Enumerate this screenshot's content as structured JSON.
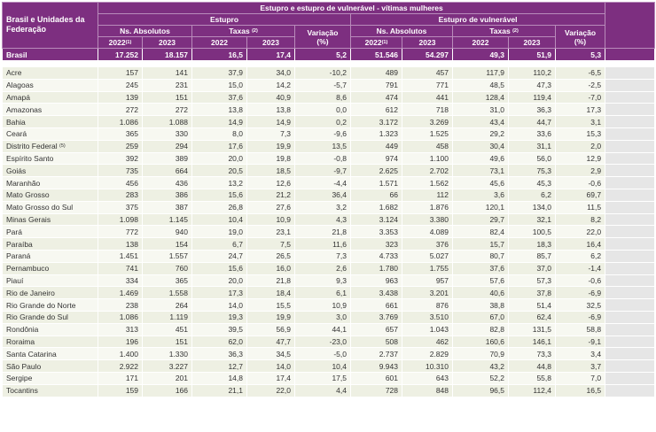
{
  "header": {
    "title": "Estupro e estupro de vulnerável - vítimas mulheres",
    "region": "Brasil e Unidades da Federação",
    "groups": [
      "Estupro",
      "Estupro de vulnerável"
    ],
    "absolute": "Ns. Absolutos",
    "rates": "Taxas",
    "rates_note": "(2)",
    "variation": "Variação",
    "variation_unit": "(%)",
    "years": [
      "2022",
      "2023"
    ],
    "first_year_note": "(1)"
  },
  "national": {
    "name": "Brasil",
    "cells": [
      "17.252",
      "18.157",
      "16,5",
      "17,4",
      "5,2",
      "51.546",
      "54.297",
      "49,3",
      "51,9",
      "5,3"
    ]
  },
  "rows": [
    {
      "name": "Acre",
      "cells": [
        "157",
        "141",
        "37,9",
        "34,0",
        "-10,2",
        "489",
        "457",
        "117,9",
        "110,2",
        "-6,5"
      ]
    },
    {
      "name": "Alagoas",
      "cells": [
        "245",
        "231",
        "15,0",
        "14,2",
        "-5,7",
        "791",
        "771",
        "48,5",
        "47,3",
        "-2,5"
      ]
    },
    {
      "name": "Amapá",
      "cells": [
        "139",
        "151",
        "37,6",
        "40,9",
        "8,6",
        "474",
        "441",
        "128,4",
        "119,4",
        "-7,0"
      ]
    },
    {
      "name": "Amazonas",
      "cells": [
        "272",
        "272",
        "13,8",
        "13,8",
        "0,0",
        "612",
        "718",
        "31,0",
        "36,3",
        "17,3"
      ]
    },
    {
      "name": "Bahia",
      "cells": [
        "1.086",
        "1.088",
        "14,9",
        "14,9",
        "0,2",
        "3.172",
        "3.269",
        "43,4",
        "44,7",
        "3,1"
      ]
    },
    {
      "name": "Ceará",
      "cells": [
        "365",
        "330",
        "8,0",
        "7,3",
        "-9,6",
        "1.323",
        "1.525",
        "29,2",
        "33,6",
        "15,3"
      ]
    },
    {
      "name": "Distrito Federal",
      "note": "(5)",
      "cells": [
        "259",
        "294",
        "17,6",
        "19,9",
        "13,5",
        "449",
        "458",
        "30,4",
        "31,1",
        "2,0"
      ]
    },
    {
      "name": "Espírito Santo",
      "cells": [
        "392",
        "389",
        "20,0",
        "19,8",
        "-0,8",
        "974",
        "1.100",
        "49,6",
        "56,0",
        "12,9"
      ]
    },
    {
      "name": "Goiás",
      "cells": [
        "735",
        "664",
        "20,5",
        "18,5",
        "-9,7",
        "2.625",
        "2.702",
        "73,1",
        "75,3",
        "2,9"
      ]
    },
    {
      "name": "Maranhão",
      "cells": [
        "456",
        "436",
        "13,2",
        "12,6",
        "-4,4",
        "1.571",
        "1.562",
        "45,6",
        "45,3",
        "-0,6"
      ]
    },
    {
      "name": "Mato Grosso",
      "cells": [
        "283",
        "386",
        "15,6",
        "21,2",
        "36,4",
        "66",
        "112",
        "3,6",
        "6,2",
        "69,7"
      ]
    },
    {
      "name": "Mato Grosso do Sul",
      "cells": [
        "375",
        "387",
        "26,8",
        "27,6",
        "3,2",
        "1.682",
        "1.876",
        "120,1",
        "134,0",
        "11,5"
      ]
    },
    {
      "name": "Minas Gerais",
      "cells": [
        "1.098",
        "1.145",
        "10,4",
        "10,9",
        "4,3",
        "3.124",
        "3.380",
        "29,7",
        "32,1",
        "8,2"
      ]
    },
    {
      "name": "Pará",
      "cells": [
        "772",
        "940",
        "19,0",
        "23,1",
        "21,8",
        "3.353",
        "4.089",
        "82,4",
        "100,5",
        "22,0"
      ]
    },
    {
      "name": "Paraíba",
      "cells": [
        "138",
        "154",
        "6,7",
        "7,5",
        "11,6",
        "323",
        "376",
        "15,7",
        "18,3",
        "16,4"
      ]
    },
    {
      "name": "Paraná",
      "cells": [
        "1.451",
        "1.557",
        "24,7",
        "26,5",
        "7,3",
        "4.733",
        "5.027",
        "80,7",
        "85,7",
        "6,2"
      ]
    },
    {
      "name": "Pernambuco",
      "cells": [
        "741",
        "760",
        "15,6",
        "16,0",
        "2,6",
        "1.780",
        "1.755",
        "37,6",
        "37,0",
        "-1,4"
      ]
    },
    {
      "name": "Piauí",
      "cells": [
        "334",
        "365",
        "20,0",
        "21,8",
        "9,3",
        "963",
        "957",
        "57,6",
        "57,3",
        "-0,6"
      ]
    },
    {
      "name": "Rio de Janeiro",
      "cells": [
        "1.469",
        "1.558",
        "17,3",
        "18,4",
        "6,1",
        "3.438",
        "3.201",
        "40,6",
        "37,8",
        "-6,9"
      ]
    },
    {
      "name": "Rio Grande do Norte",
      "cells": [
        "238",
        "264",
        "14,0",
        "15,5",
        "10,9",
        "661",
        "876",
        "38,8",
        "51,4",
        "32,5"
      ]
    },
    {
      "name": "Rio Grande do Sul",
      "cells": [
        "1.086",
        "1.119",
        "19,3",
        "19,9",
        "3,0",
        "3.769",
        "3.510",
        "67,0",
        "62,4",
        "-6,9"
      ]
    },
    {
      "name": "Rondônia",
      "cells": [
        "313",
        "451",
        "39,5",
        "56,9",
        "44,1",
        "657",
        "1.043",
        "82,8",
        "131,5",
        "58,8"
      ]
    },
    {
      "name": "Roraima",
      "cells": [
        "196",
        "151",
        "62,0",
        "47,7",
        "-23,0",
        "508",
        "462",
        "160,6",
        "146,1",
        "-9,1"
      ]
    },
    {
      "name": "Santa Catarina",
      "cells": [
        "1.400",
        "1.330",
        "36,3",
        "34,5",
        "-5,0",
        "2.737",
        "2.829",
        "70,9",
        "73,3",
        "3,4"
      ]
    },
    {
      "name": "São Paulo",
      "cells": [
        "2.922",
        "3.227",
        "12,7",
        "14,0",
        "10,4",
        "9.943",
        "10.310",
        "43,2",
        "44,8",
        "3,7"
      ]
    },
    {
      "name": "Sergipe",
      "cells": [
        "171",
        "201",
        "14,8",
        "17,4",
        "17,5",
        "601",
        "643",
        "52,2",
        "55,8",
        "7,0"
      ]
    },
    {
      "name": "Tocantins",
      "cells": [
        "159",
        "166",
        "21,1",
        "22,0",
        "4,4",
        "728",
        "848",
        "96,5",
        "112,4",
        "16,5"
      ]
    }
  ]
}
